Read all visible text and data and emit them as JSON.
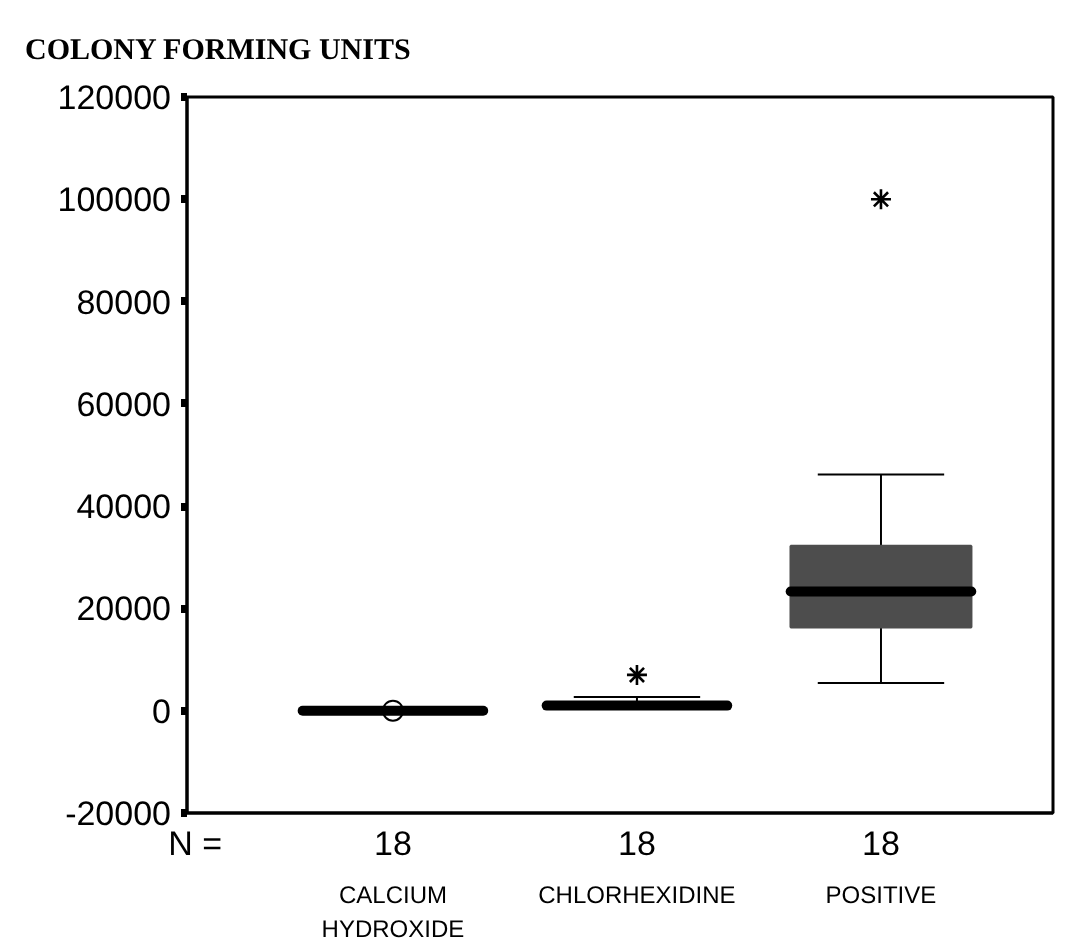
{
  "chart_data": {
    "type": "box",
    "title": "COLONY FORMING UNITS",
    "categories": [
      "CALCIUM HYDROXIDE",
      "CHLORHEXIDINE",
      "POSITIVE"
    ],
    "series": [
      {
        "color": "#4d4d4d",
        "boxes": [
          {
            "low": 0,
            "q1": 0,
            "median": 0,
            "q3": 0,
            "high": 0
          },
          {
            "low": 400,
            "q1": 600,
            "median": 1000,
            "q3": 1400,
            "high": 2700,
            "outliers": [
              7000
            ]
          },
          {
            "low": 5400,
            "q1": 16300,
            "median": 23300,
            "q3": 32200,
            "high": 46200,
            "outliers": [
              100000
            ]
          }
        ]
      },
      {
        "type": "scatter",
        "marker": "circle",
        "color": "#000000",
        "x": [
          "CALCIUM HYDROXIDE"
        ],
        "values": [
          0
        ]
      }
    ],
    "marker": "star",
    "ylim": [
      -20000,
      120000
    ],
    "yticks": [
      -20000,
      0,
      20000,
      40000,
      60000,
      80000,
      100000,
      120000
    ],
    "grid": false,
    "annotations": [
      "N =",
      "18",
      "18",
      "18"
    ]
  }
}
